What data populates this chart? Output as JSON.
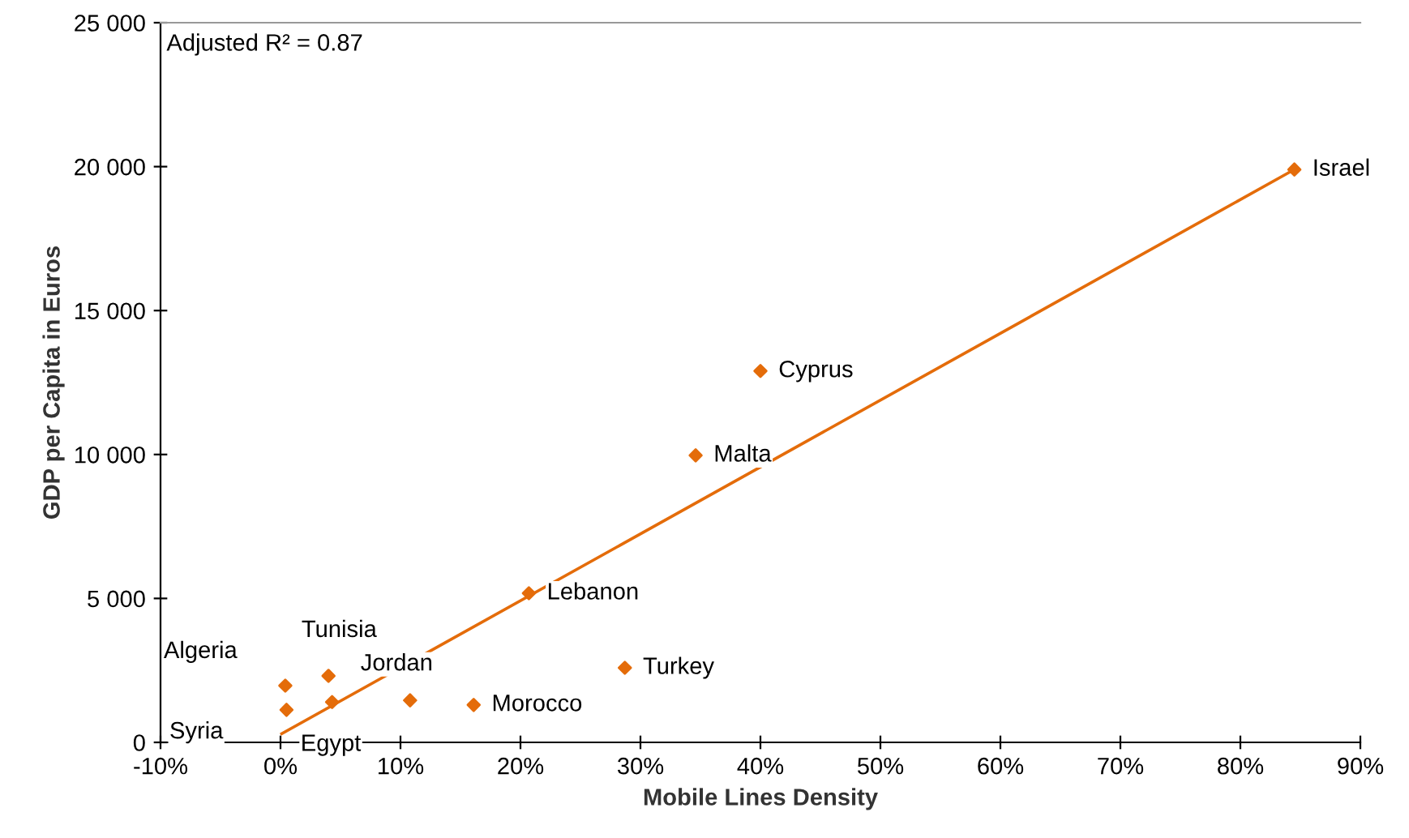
{
  "chart_data": {
    "type": "scatter",
    "xlabel": "Mobile Lines Density",
    "ylabel": "GDP per Capita in Euros",
    "grid": false,
    "legend": false,
    "xlim": [
      -10,
      90
    ],
    "ylim": [
      0,
      25000
    ],
    "xticks": [
      {
        "value": -10,
        "label": "-10%"
      },
      {
        "value": 0,
        "label": "0%"
      },
      {
        "value": 10,
        "label": "10%"
      },
      {
        "value": 20,
        "label": "20%"
      },
      {
        "value": 30,
        "label": "30%"
      },
      {
        "value": 40,
        "label": "40%"
      },
      {
        "value": 50,
        "label": "50%"
      },
      {
        "value": 60,
        "label": "60%"
      },
      {
        "value": 70,
        "label": "70%"
      },
      {
        "value": 80,
        "label": "80%"
      },
      {
        "value": 90,
        "label": "90%"
      }
    ],
    "yticks": [
      {
        "value": 0,
        "label": "0"
      },
      {
        "value": 5000,
        "label": "5 000"
      },
      {
        "value": 10000,
        "label": "10 000"
      },
      {
        "value": 15000,
        "label": "15 000"
      },
      {
        "value": 20000,
        "label": "20 000"
      },
      {
        "value": 25000,
        "label": "25 000"
      }
    ],
    "series": [
      {
        "marker": "diamond",
        "color": "#e46c0a",
        "x": [
          84.5,
          40.0,
          34.6,
          20.7,
          28.7,
          16.1,
          10.8,
          4.0,
          4.3,
          0.4,
          0.5
        ],
        "values": [
          19900,
          12900,
          9970,
          5180,
          2590,
          1300,
          1460,
          2310,
          1400,
          1970,
          1130
        ]
      },
      {
        "type": "line",
        "marker": "none",
        "color": "#e46c0a",
        "x": [
          0.1,
          84.5
        ],
        "values": [
          300,
          19900
        ]
      }
    ],
    "annotations": [
      {
        "text": "Israel",
        "x": 84.5,
        "y": 19900
      },
      {
        "text": "Cyprus",
        "x": 40.0,
        "y": 12900
      },
      {
        "text": "Malta",
        "x": 34.6,
        "y": 9970
      },
      {
        "text": "Lebanon",
        "x": 20.7,
        "y": 5180
      },
      {
        "text": "Turkey",
        "x": 28.7,
        "y": 2590
      },
      {
        "text": "Morocco",
        "x": 16.1,
        "y": 1300
      },
      {
        "text": "Jordan",
        "x": 10.8,
        "y": 1460
      },
      {
        "text": "Tunisia",
        "x": 4.0,
        "y": 2310
      },
      {
        "text": "Egypt",
        "x": 4.3,
        "y": 1400
      },
      {
        "text": "Algeria",
        "x": 0.4,
        "y": 1970
      },
      {
        "text": "Syria",
        "x": 0.5,
        "y": 1130
      },
      "Adjusted R² = 0.87"
    ]
  }
}
